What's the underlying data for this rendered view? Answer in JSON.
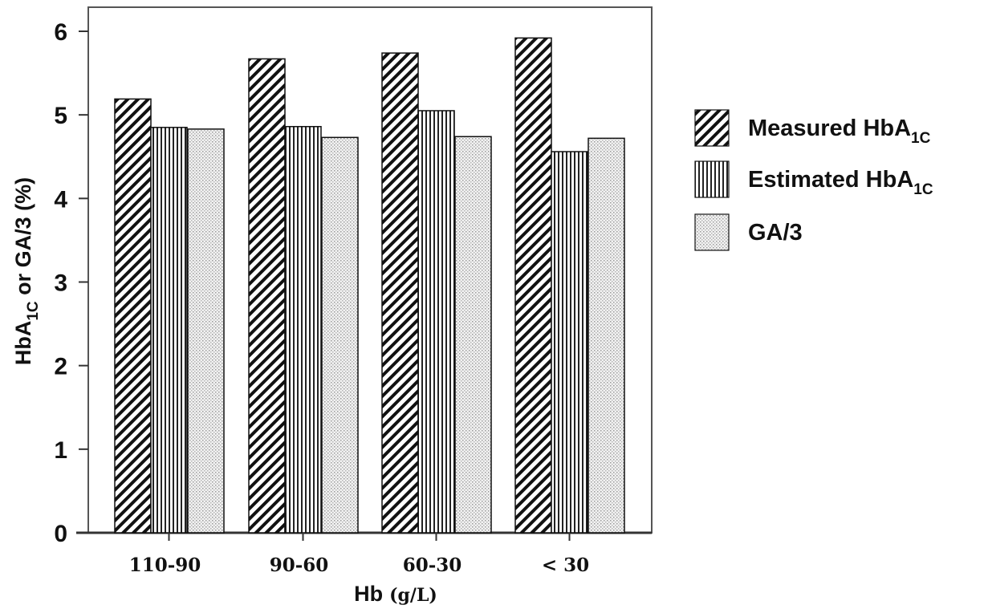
{
  "chart_data": {
    "type": "bar",
    "ylabel": {
      "main": "HbA",
      "sub": "1C",
      "rest": " or GA/3 (%)"
    },
    "xlabel": {
      "main": "Hb",
      "unit": "(g/L)"
    },
    "categories": [
      "110-90",
      "90-60",
      "60-30",
      "< 30"
    ],
    "ylim": [
      0,
      6.2
    ],
    "yticks": [
      0,
      1,
      2,
      3,
      4,
      5,
      6
    ],
    "grid": false,
    "legend_position": "right",
    "series": [
      {
        "name": "Measured HbA1C",
        "label_main": "Measured HbA",
        "label_sub": "1C",
        "pattern": "diagonal-hatch",
        "values": [
          5.19,
          5.67,
          5.74,
          5.92
        ]
      },
      {
        "name": "Estimated HbA1C",
        "label_main": "Estimated HbA",
        "label_sub": "1C",
        "pattern": "vertical-lines",
        "values": [
          4.85,
          4.86,
          5.05,
          4.56
        ]
      },
      {
        "name": "GA/3",
        "label_main": "GA/3",
        "label_sub": "",
        "pattern": "dots",
        "values": [
          4.83,
          4.73,
          4.74,
          4.72
        ]
      }
    ]
  }
}
